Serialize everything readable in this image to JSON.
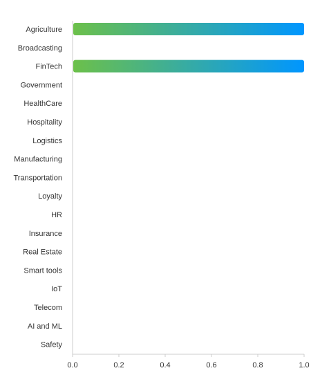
{
  "chart_data": {
    "type": "bar",
    "orientation": "horizontal",
    "categories": [
      "Agriculture",
      "Broadcasting",
      "FinTech",
      "Government",
      "HealthCare",
      "Hospitality",
      "Logistics",
      "Manufacturing",
      "Transportation",
      "Loyalty",
      "HR",
      "Insurance",
      "Real Estate",
      "Smart tools",
      "IoT",
      "Telecom",
      "AI and ML",
      "Safety"
    ],
    "values": [
      1,
      0,
      1,
      0,
      0,
      0,
      0,
      0,
      0,
      0,
      0,
      0,
      0,
      0,
      0,
      0,
      0,
      0
    ],
    "xlim": [
      0,
      1
    ],
    "x_ticks": [
      "0.0",
      "0.2",
      "0.4",
      "0.6",
      "0.8",
      "1.0"
    ],
    "title": "",
    "xlabel": "",
    "ylabel": "",
    "grid": false,
    "legend": "none",
    "colors": {
      "gradient_start": "#6cc04a",
      "gradient_end": "#0096ff",
      "axis": "#cccccc",
      "text": "#333333"
    }
  }
}
